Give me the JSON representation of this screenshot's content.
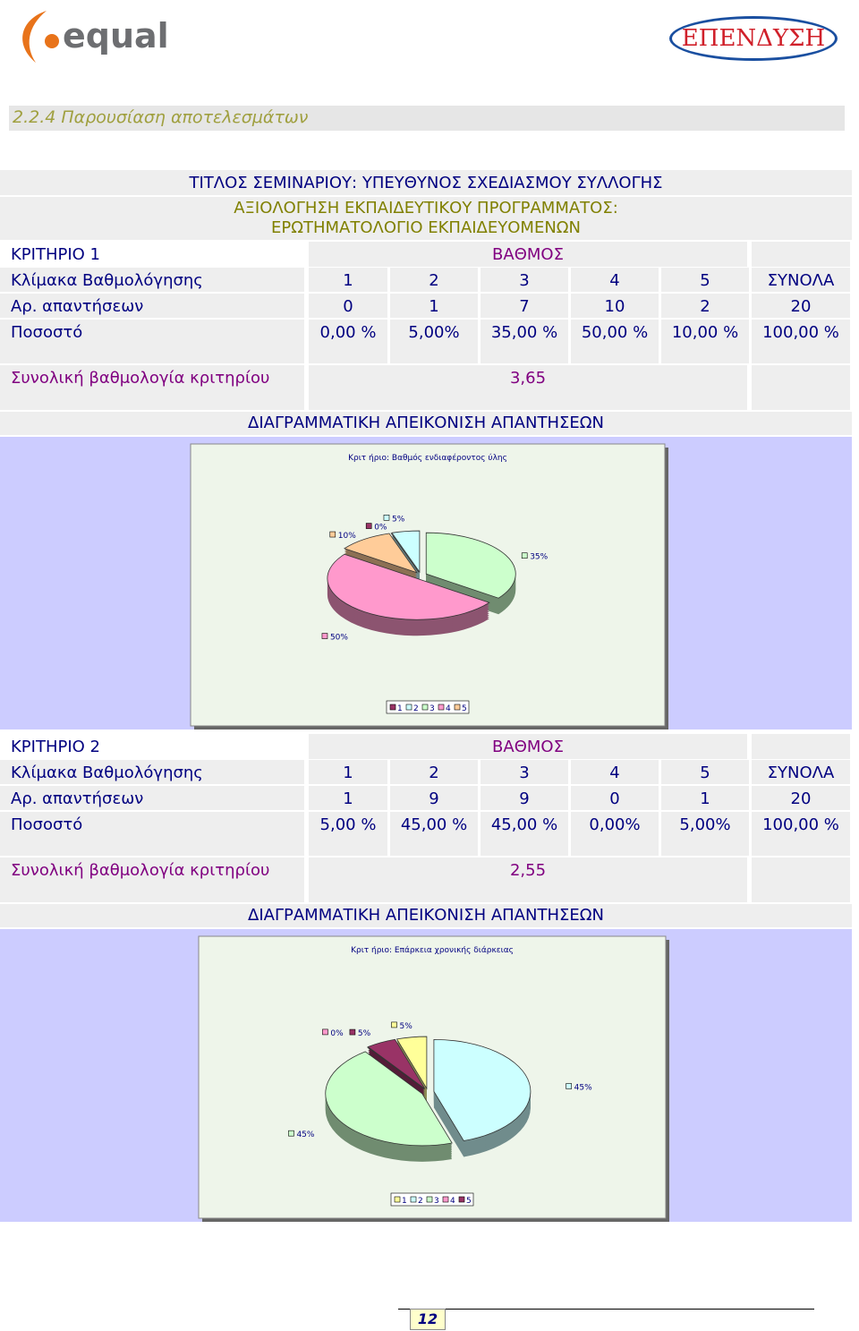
{
  "header": {
    "logo_left": "equal",
    "logo_right": "ΕΠΕΝΔΥΣΗ"
  },
  "section_title": "2.2.4 Παρουσίαση αποτελεσμάτων",
  "seminar_title": "ΤΙΤΛΟΣ ΣΕΜΙΝΑΡΙΟΥ: ΥΠΕΥΘΥΝΟΣ ΣΧΕΔΙΑΣΜΟΥ ΣΥΛΛΟΓΗΣ",
  "programme_title": [
    "ΑΞΙΟΛΟΓΗΣΗ ΕΚΠΑΙΔΕΥΤΙΚΟΥ ΠΡΟΓΡΑΜΜΑΤΟΣ:",
    "ΕΡΩΤΗΜΑΤΟΛΟΓΙΟ ΕΚΠΑΙΔΕΥΟΜΕΝΩΝ"
  ],
  "criteria": [
    {
      "name": "ΚΡΙΤΗΡΙΟ 1",
      "grade_header": "ΒΑΘΜΟΣ",
      "rows": [
        {
          "label": "Κλίμακα Βαθμολόγησης",
          "cells": [
            "1",
            "2",
            "3",
            "4",
            "5",
            "ΣΥΝΟΛΑ"
          ]
        },
        {
          "label": "Αρ. απαντήσεων",
          "cells": [
            "0",
            "1",
            "7",
            "10",
            "2",
            "20"
          ]
        },
        {
          "label": "Ποσοστό",
          "cells": [
            "0,00 %",
            "5,00%",
            "35,00 %",
            "50,00 %",
            "10,00 %",
            "100,00 %"
          ]
        }
      ],
      "total_label": "Συνολική βαθμολογία κριτηρίου",
      "total": "3,65",
      "diagram_heading": "ΔΙΑΓΡΑΜΜΑΤΙΚΗ ΑΠΕΙΚΟΝΙΣΗ ΑΠΑΝΤΗΣΕΩΝ",
      "chart": {
        "type": "pie",
        "title": "Κριτ ήριο: Βαθμός ενδιαφέροντος ύλης",
        "categories": [
          "1",
          "2",
          "3",
          "4",
          "5"
        ],
        "values": [
          0,
          5,
          35,
          50,
          10
        ],
        "value_labels": [
          "0%",
          "5%",
          "35%",
          "50%",
          "10%"
        ],
        "colors": [
          "#993366",
          "#ccffff",
          "#ccffcc",
          "#ff99cc",
          "#ffcc99"
        ]
      }
    },
    {
      "name": "ΚΡΙΤΗΡΙΟ 2",
      "grade_header": "ΒΑΘΜΟΣ",
      "rows": [
        {
          "label": "Κλίμακα Βαθμολόγησης",
          "cells": [
            "1",
            "2",
            "3",
            "4",
            "5",
            "ΣΥΝΟΛΑ"
          ]
        },
        {
          "label": "Αρ. απαντήσεων",
          "cells": [
            "1",
            "9",
            "9",
            "0",
            "1",
            "20"
          ]
        },
        {
          "label": "Ποσοστό",
          "cells": [
            "5,00 %",
            "45,00 %",
            "45,00 %",
            "0,00%",
            "5,00%",
            "100,00 %"
          ]
        }
      ],
      "total_label": "Συνολική βαθμολογία κριτηρίου",
      "total": "2,55",
      "diagram_heading": "ΔΙΑΓΡΑΜΜΑΤΙΚΗ ΑΠΕΙΚΟΝΙΣΗ ΑΠΑΝΤΗΣΕΩΝ",
      "chart": {
        "type": "pie",
        "title": "Κριτ ήριο: Επάρκεια χρονικής διάρκειας",
        "categories": [
          "1",
          "2",
          "3",
          "4",
          "5"
        ],
        "values": [
          5,
          45,
          45,
          0,
          5
        ],
        "value_labels": [
          "5%",
          "45%",
          "45%",
          "0%",
          "5%"
        ],
        "colors": [
          "#ffff99",
          "#ccffff",
          "#ccffcc",
          "#ff99cc",
          "#993366"
        ]
      }
    }
  ],
  "page_number": "12"
}
